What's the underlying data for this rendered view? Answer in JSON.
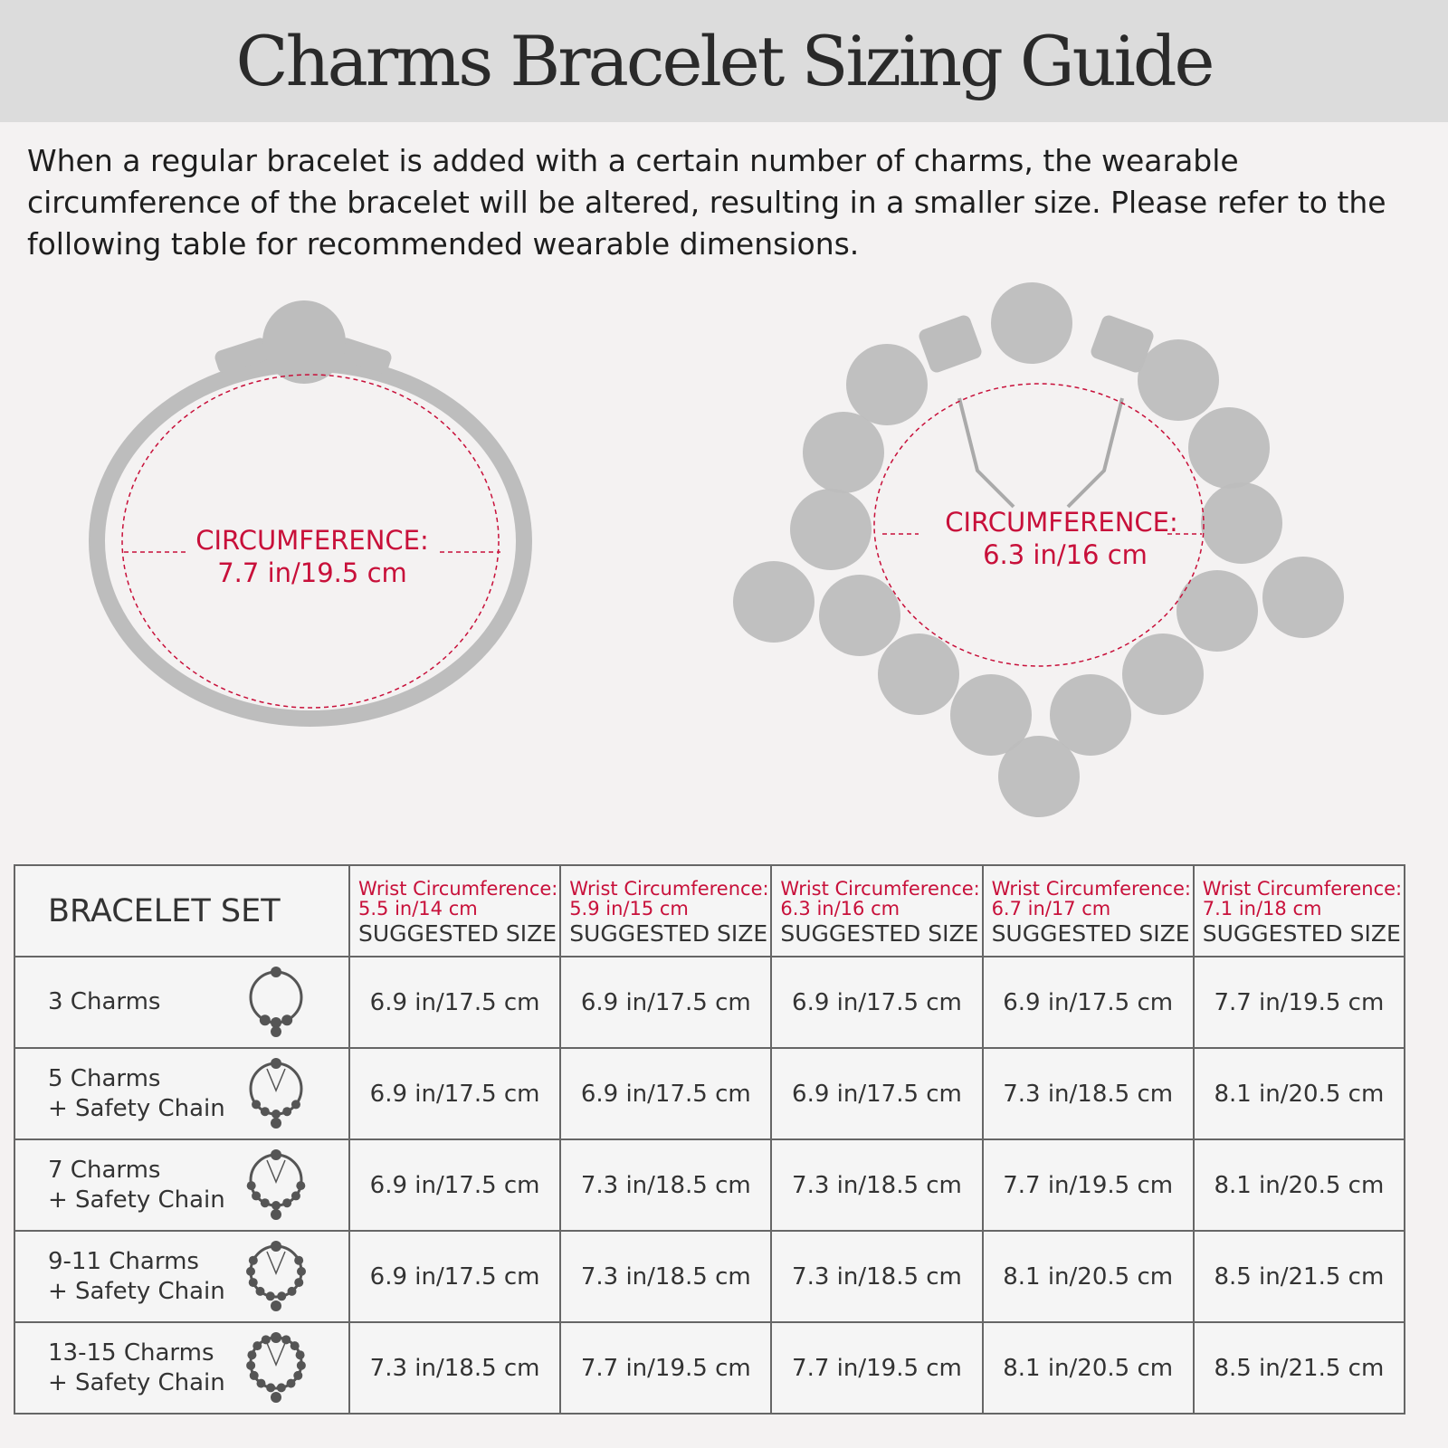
{
  "title": "Charms Bracelet Sizing Guide",
  "intro": "When a regular bracelet is added with a certain number of charms, the wearable circumference of the bracelet will be altered, resulting in a smaller size. Please refer to the following table for recommended wearable dimensions.",
  "illustrations": {
    "left": {
      "label": "CIRCUMFERENCE:",
      "value": "7.7 in/19.5 cm"
    },
    "right": {
      "label": "CIRCUMFERENCE:",
      "value": "6.3 in/16 cm"
    }
  },
  "colors": {
    "accent": "#c8103a",
    "charm": "#bdbdbd"
  },
  "table": {
    "set_header": "BRACELET SET",
    "columns": [
      {
        "wrist": "Wrist Circumference:",
        "size": "5.5 in/14 cm",
        "suggested": "SUGGESTED SIZE"
      },
      {
        "wrist": "Wrist Circumference:",
        "size": "5.9 in/15 cm",
        "suggested": "SUGGESTED SIZE"
      },
      {
        "wrist": "Wrist Circumference:",
        "size": "6.3 in/16 cm",
        "suggested": "SUGGESTED SIZE"
      },
      {
        "wrist": "Wrist Circumference:",
        "size": "6.7 in/17 cm",
        "suggested": "SUGGESTED SIZE"
      },
      {
        "wrist": "Wrist Circumference:",
        "size": "7.1 in/18 cm",
        "suggested": "SUGGESTED SIZE"
      }
    ],
    "rows": [
      {
        "line1": "3 Charms",
        "line2": "",
        "icon": "bracelet-3-charms-icon",
        "values": [
          "6.9 in/17.5 cm",
          "6.9 in/17.5 cm",
          "6.9 in/17.5 cm",
          "6.9 in/17.5 cm",
          "7.7 in/19.5 cm"
        ]
      },
      {
        "line1": "5 Charms",
        "line2": "+ Safety Chain",
        "icon": "bracelet-5-charms-icon",
        "values": [
          "6.9 in/17.5 cm",
          "6.9 in/17.5 cm",
          "6.9 in/17.5 cm",
          "7.3 in/18.5 cm",
          "8.1 in/20.5 cm"
        ]
      },
      {
        "line1": "7 Charms",
        "line2": "+ Safety Chain",
        "icon": "bracelet-7-charms-icon",
        "values": [
          "6.9 in/17.5 cm",
          "7.3 in/18.5 cm",
          "7.3 in/18.5 cm",
          "7.7 in/19.5 cm",
          "8.1 in/20.5 cm"
        ]
      },
      {
        "line1": "9-11 Charms",
        "line2": "+ Safety Chain",
        "icon": "bracelet-9-11-charms-icon",
        "values": [
          "6.9 in/17.5 cm",
          "7.3 in/18.5 cm",
          "7.3 in/18.5 cm",
          "8.1 in/20.5 cm",
          "8.5 in/21.5 cm"
        ]
      },
      {
        "line1": "13-15 Charms",
        "line2": "+ Safety Chain",
        "icon": "bracelet-13-15-charms-icon",
        "values": [
          "7.3 in/18.5 cm",
          "7.7 in/19.5 cm",
          "7.7 in/19.5 cm",
          "8.1 in/20.5 cm",
          "8.5 in/21.5 cm"
        ]
      }
    ]
  }
}
